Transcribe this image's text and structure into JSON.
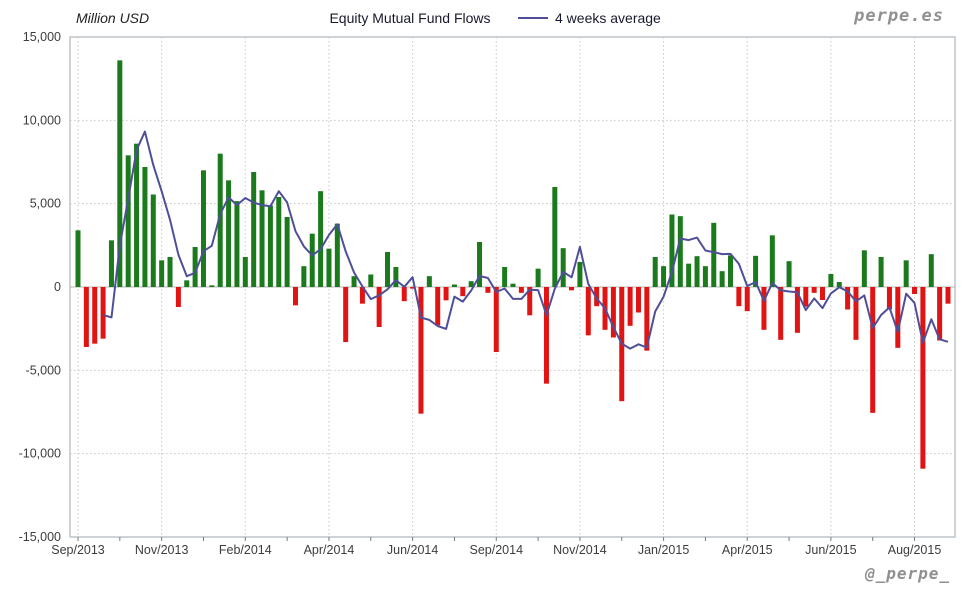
{
  "header": {
    "y_axis_title": "Million USD",
    "title": "Equity Mutual Fund Flows",
    "legend_label": "4 weeks average",
    "watermark": "perpe.es"
  },
  "footer": {
    "handle": "@_perpe_"
  },
  "chart_data": {
    "type": "bar",
    "title": "Equity Mutual Fund Flows",
    "ylabel": "Million USD",
    "ylim": [
      -15000,
      15000
    ],
    "grid": true,
    "legend_position": "top",
    "y_ticks": [
      "15,000",
      "10,000",
      "5,000",
      "0",
      "-5,000",
      "-10,000",
      "-15,000"
    ],
    "x_tick_labels": [
      "Sep/2013",
      "Nov/2013",
      "Feb/2014",
      "Apr/2014",
      "Jun/2014",
      "Sep/2014",
      "Nov/2014",
      "Jan/2015",
      "Apr/2015",
      "Jun/2015",
      "Aug/2015"
    ],
    "x_tick_every_n_bars": 10,
    "series": [
      {
        "name": "Equity Mutual Fund Flows",
        "type": "bar",
        "positive_color": "#1a7a1c",
        "negative_color": "#e01413",
        "values": [
          3400,
          -3600,
          -3400,
          -3100,
          2800,
          13600,
          7900,
          8600,
          7200,
          5550,
          1600,
          1800,
          -1200,
          400,
          2400,
          7000,
          100,
          8000,
          6400,
          5150,
          1800,
          6900,
          5800,
          4900,
          5400,
          4200,
          -1100,
          1250,
          3200,
          5750,
          2300,
          3800,
          -3300,
          650,
          -1000,
          750,
          -2400,
          2100,
          1200,
          -850,
          -100,
          -7600,
          650,
          -2300,
          -800,
          150,
          -550,
          350,
          2700,
          -350,
          -3900,
          1200,
          200,
          -350,
          -1700,
          1100,
          -5800,
          6000,
          2330,
          -200,
          1500,
          -2900,
          -1150,
          -2570,
          -3030,
          -6850,
          -2330,
          -1530,
          -3820,
          1800,
          1250,
          4350,
          4250,
          1400,
          1850,
          1250,
          3850,
          950,
          1900,
          -1150,
          -1450,
          1870,
          -2570,
          3100,
          -3170,
          1550,
          -2750,
          -1180,
          -350,
          -780,
          780,
          300,
          -1350,
          -3170,
          2200,
          -7550,
          1800,
          -1350,
          -3650,
          1600,
          -420,
          -10900,
          1970,
          -3210,
          -1000
        ]
      },
      {
        "name": "4 weeks average",
        "type": "line",
        "color": "#4f4f99",
        "derived": "trailing 4-week moving average of the weekly bar values"
      }
    ],
    "colors": {
      "grid": "#c6c6c6",
      "zero_line": "#b4b4b4",
      "plot_border": "#aeb6bd",
      "axis_text": "#3d3d3d"
    }
  }
}
